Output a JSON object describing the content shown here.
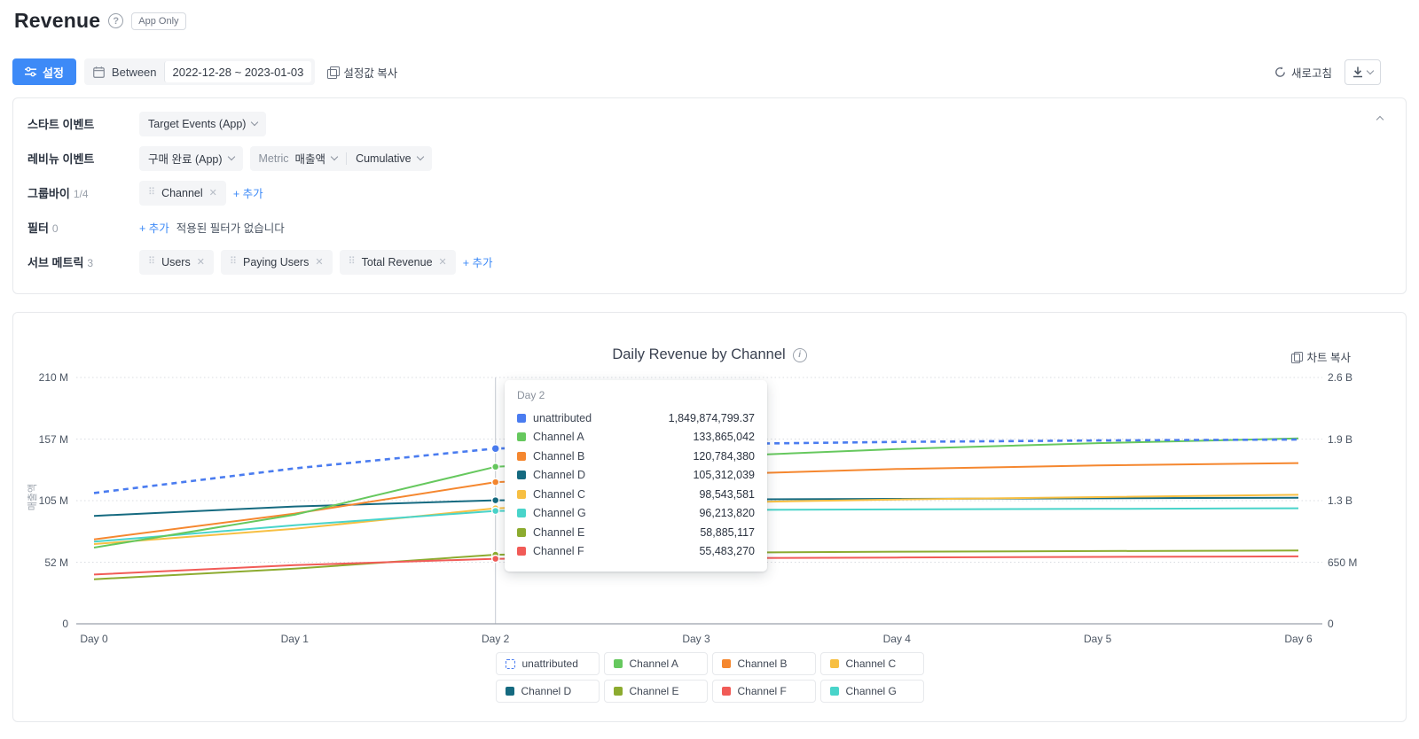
{
  "header": {
    "title": "Revenue",
    "badge": "App Only"
  },
  "toolbar": {
    "settings_label": "설정",
    "between_label": "Between",
    "date_range": "2022-12-28 ~ 2023-01-03",
    "copy_settings_label": "설정값 복사",
    "refresh_label": "새로고침"
  },
  "settings": {
    "start_event": {
      "label": "스타트 이벤트",
      "dropdown": "Target Events (App)"
    },
    "revenue_event": {
      "label": "레비뉴 이벤트",
      "dropdown": "구매 완료 (App)",
      "metric_label": "Metric",
      "metric_value": "매출액",
      "cumulative_value": "Cumulative"
    },
    "group_by": {
      "label": "그룹바이",
      "count": "1/4",
      "chips": [
        "Channel"
      ],
      "add_label": "+ 추가"
    },
    "filter": {
      "label": "필터",
      "count": "0",
      "add_label": "+ 추가",
      "empty_text": "적용된 필터가 없습니다"
    },
    "sub_metrics": {
      "label": "서브 메트릭",
      "count": "3",
      "chips": [
        "Users",
        "Paying Users",
        "Total Revenue"
      ],
      "add_label": "+ 추가"
    }
  },
  "chart": {
    "title": "Daily Revenue by Channel",
    "copy_label": "차트 복사",
    "y_axis_label": "매출액",
    "left_ticks": [
      "210 M",
      "157 M",
      "105 M",
      "52 M",
      "0"
    ],
    "right_ticks": [
      "2.6 B",
      "1.9 B",
      "1.3 B",
      "650 M",
      "0"
    ],
    "x_ticks": [
      "Day 0",
      "Day 1",
      "Day 2",
      "Day 3",
      "Day 4",
      "Day 5",
      "Day 6"
    ]
  },
  "tooltip": {
    "header": "Day 2",
    "rows": [
      {
        "name": "unattributed",
        "value": "1,849,874,799.37",
        "color": "#4a7cf0"
      },
      {
        "name": "Channel A",
        "value": "133,865,042",
        "color": "#66c85e"
      },
      {
        "name": "Channel B",
        "value": "120,784,380",
        "color": "#f5872f"
      },
      {
        "name": "Channel D",
        "value": "105,312,039",
        "color": "#156a80"
      },
      {
        "name": "Channel C",
        "value": "98,543,581",
        "color": "#f7bf42"
      },
      {
        "name": "Channel G",
        "value": "96,213,820",
        "color": "#49d4ca"
      },
      {
        "name": "Channel E",
        "value": "58,885,117",
        "color": "#8cab2f"
      },
      {
        "name": "Channel F",
        "value": "55,483,270",
        "color": "#f15b57"
      }
    ]
  },
  "legend": {
    "rows": [
      [
        {
          "label": "unattributed",
          "color": "#4a7cf0",
          "dashed": true
        },
        {
          "label": "Channel A",
          "color": "#66c85e",
          "dashed": false
        },
        {
          "label": "Channel B",
          "color": "#f5872f",
          "dashed": false
        },
        {
          "label": "Channel C",
          "color": "#f7bf42",
          "dashed": false
        }
      ],
      [
        {
          "label": "Channel D",
          "color": "#156a80",
          "dashed": false
        },
        {
          "label": "Channel E",
          "color": "#8cab2f",
          "dashed": false
        },
        {
          "label": "Channel F",
          "color": "#f15b57",
          "dashed": false
        },
        {
          "label": "Channel G",
          "color": "#49d4ca",
          "dashed": false
        }
      ]
    ]
  },
  "chart_data": {
    "type": "line",
    "title": "Daily Revenue by Channel",
    "x": [
      "Day 0",
      "Day 1",
      "Day 2",
      "Day 3",
      "Day 4",
      "Day 5",
      "Day 6"
    ],
    "y_left_axis": {
      "label": "매출액",
      "range_M": [
        0,
        210
      ],
      "ticks": [
        "0",
        "52 M",
        "105 M",
        "157 M",
        "210 M"
      ]
    },
    "y_right_axis": {
      "range_M": [
        0,
        2600
      ],
      "ticks": [
        "0",
        "650 M",
        "1.3 B",
        "1.9 B",
        "2.6 B"
      ]
    },
    "grid": "dotted-horizontal",
    "legend_position": "bottom",
    "crosshair_at": "Day 2",
    "series": [
      {
        "name": "Channel D",
        "color": "#156a80",
        "axis": "left",
        "style": "solid",
        "values_M": [
          92,
          100,
          105.31,
          106,
          106.5,
          107,
          107.5
        ],
        "day2_exact": 105312039
      },
      {
        "name": "Channel C",
        "color": "#f7bf42",
        "axis": "left",
        "style": "solid",
        "values_M": [
          68,
          81,
          98.54,
          103,
          106,
          108,
          110
        ],
        "day2_exact": 98543581
      },
      {
        "name": "Channel G",
        "color": "#49d4ca",
        "axis": "left",
        "style": "solid",
        "values_M": [
          70,
          84,
          96.21,
          97,
          97.5,
          98,
          98.5
        ],
        "day2_exact": 96213820
      },
      {
        "name": "Channel E",
        "color": "#8cab2f",
        "axis": "left",
        "style": "solid",
        "values_M": [
          38,
          47,
          58.89,
          60.5,
          61.5,
          62,
          62.5
        ],
        "day2_exact": 58885117
      },
      {
        "name": "Channel F",
        "color": "#f15b57",
        "axis": "left",
        "style": "solid",
        "values_M": [
          42,
          50,
          55.48,
          56,
          56.5,
          57,
          57.5
        ],
        "day2_exact": 55483270
      },
      {
        "name": "Channel B",
        "color": "#f5872f",
        "axis": "left",
        "style": "solid",
        "values_M": [
          72,
          94,
          120.78,
          127,
          132,
          135,
          137
        ],
        "day2_exact": 120784380
      },
      {
        "name": "Channel A",
        "color": "#66c85e",
        "axis": "left",
        "style": "solid",
        "values_M": [
          65,
          93,
          133.87,
          142,
          149,
          154,
          158
        ],
        "day2_exact": 133865042
      },
      {
        "name": "unattributed",
        "color": "#4a7cf0",
        "axis": "right",
        "style": "dashed",
        "values_M": [
          1380,
          1640,
          1849.87,
          1895,
          1920,
          1935,
          1945
        ],
        "day2_exact": 1849874799.37
      }
    ]
  }
}
